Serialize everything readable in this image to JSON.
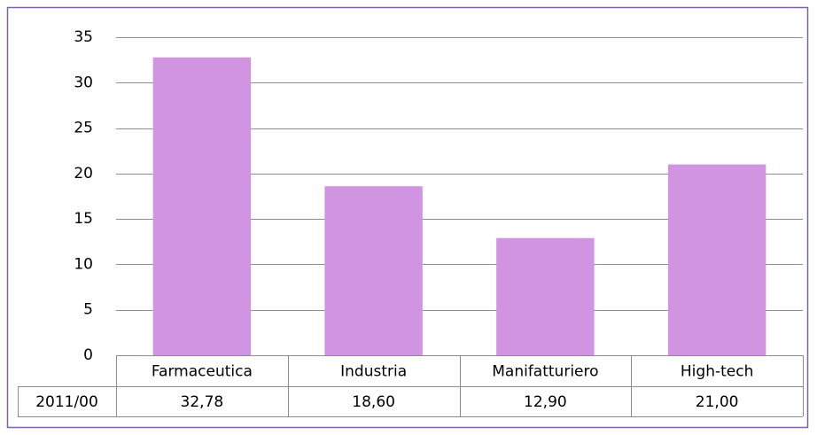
{
  "chart_data": {
    "type": "bar",
    "categories": [
      "Farmaceutica",
      "Industria",
      "Manifatturiero",
      "High-tech"
    ],
    "series": [
      {
        "name": "2011/00",
        "color": "#d194e1",
        "values": [
          32.78,
          18.6,
          12.9,
          21.0
        ],
        "value_labels": [
          "32,78",
          "18,60",
          "12,90",
          "21,00"
        ]
      }
    ],
    "ylim": [
      0,
      35
    ],
    "yticks": [
      0,
      5,
      10,
      15,
      20,
      25,
      30,
      35
    ],
    "grid": true
  }
}
